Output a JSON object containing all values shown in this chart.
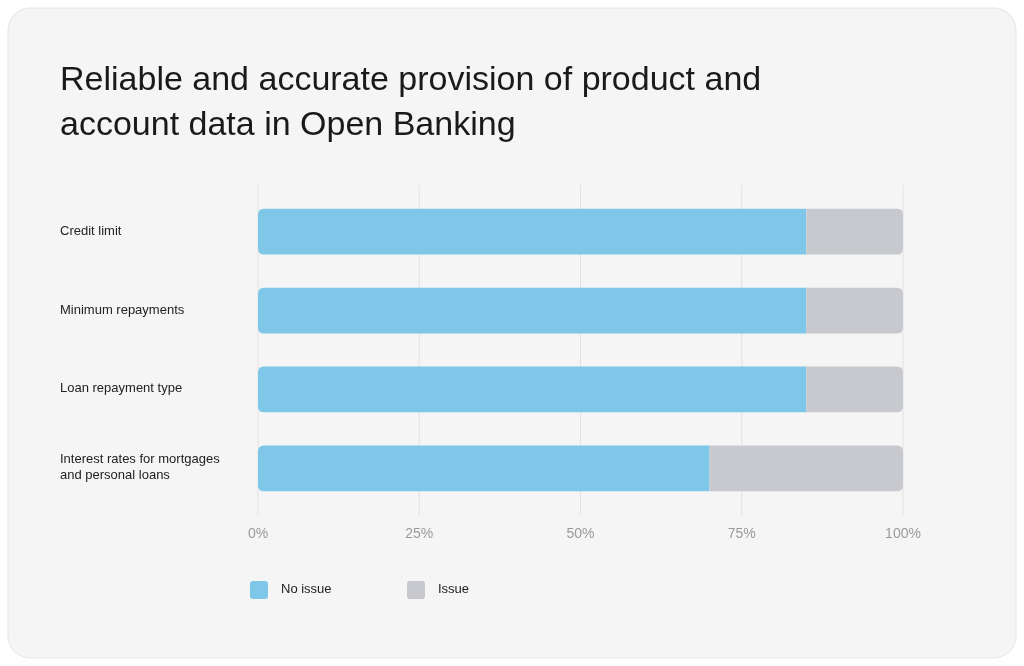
{
  "chart_data": {
    "type": "bar",
    "orientation": "horizontal",
    "stacked": true,
    "title": "Reliable and accurate provision of product and account data in Open Banking",
    "categories": [
      "Credit limit",
      "Minimum repayments",
      "Loan repayment type",
      "Interest rates for mortgages and personal loans"
    ],
    "series": [
      {
        "name": "No issue",
        "color": "#7fc7e8",
        "values": [
          85,
          85,
          85,
          70
        ]
      },
      {
        "name": "Issue",
        "color": "#c8c9ce",
        "values": [
          15,
          15,
          15,
          30
        ]
      }
    ],
    "xlim": [
      0,
      100
    ],
    "xticks": [
      {
        "value": 0,
        "label": "0%"
      },
      {
        "value": 25,
        "label": "25%"
      },
      {
        "value": 50,
        "label": "50%"
      },
      {
        "value": 75,
        "label": "75%"
      },
      {
        "value": 100,
        "label": "100%"
      }
    ],
    "grid": "x",
    "legend": "bottom"
  }
}
